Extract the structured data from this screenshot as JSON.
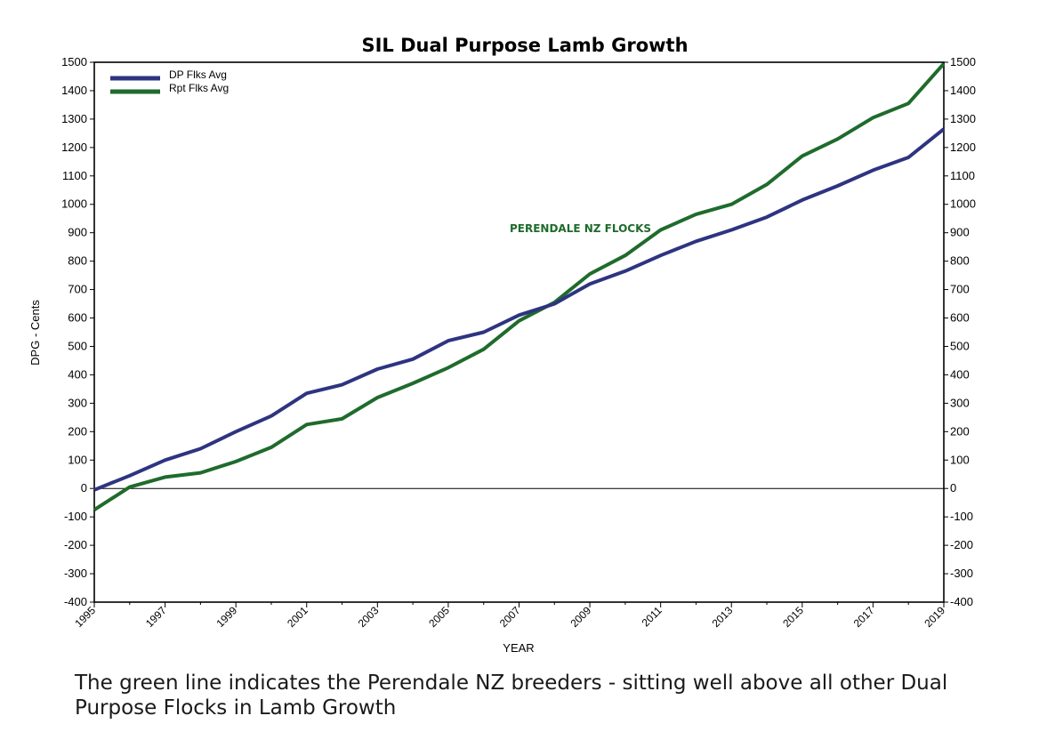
{
  "chart_data": {
    "type": "line",
    "title": "SIL Dual Purpose Lamb Growth",
    "xlabel": "YEAR",
    "ylabel": "DPG - Cents",
    "xlim": [
      1995,
      2019
    ],
    "ylim": [
      -400,
      1500
    ],
    "y_ticks": [
      -400,
      -300,
      -200,
      -100,
      0,
      100,
      200,
      300,
      400,
      500,
      600,
      700,
      800,
      900,
      1000,
      1100,
      1200,
      1300,
      1400,
      1500
    ],
    "x_ticks": [
      "1995",
      "1997",
      "1999",
      "2001",
      "2003",
      "2005",
      "2007",
      "2009",
      "2011",
      "2013",
      "2015",
      "2017",
      "2019"
    ],
    "grid": false,
    "secondary_y_axis": true,
    "legend_position": "top-left",
    "x": [
      1995,
      1996,
      1997,
      1998,
      1999,
      2000,
      2001,
      2002,
      2003,
      2004,
      2005,
      2006,
      2007,
      2008,
      2009,
      2010,
      2011,
      2012,
      2013,
      2014,
      2015,
      2016,
      2017,
      2018,
      2019
    ],
    "series": [
      {
        "name": "DP Flks Avg",
        "color": "#2e3480",
        "values": [
          -5,
          45,
          100,
          140,
          200,
          255,
          335,
          365,
          420,
          455,
          520,
          550,
          610,
          650,
          720,
          765,
          820,
          870,
          910,
          955,
          1015,
          1065,
          1120,
          1165,
          1265
        ]
      },
      {
        "name": "Rpt Flks Avg",
        "color": "#1f6b2c",
        "values": [
          -75,
          5,
          40,
          55,
          95,
          145,
          225,
          245,
          320,
          370,
          425,
          490,
          590,
          655,
          755,
          820,
          910,
          965,
          1000,
          1070,
          1170,
          1230,
          1305,
          1355,
          1495
        ]
      }
    ],
    "annotation": {
      "text": "PERENDALE NZ FLOCKS",
      "color": "#1f6b2c"
    }
  },
  "caption": "The green line indicates the Perendale NZ breeders - sitting well above all other Dual Purpose Flocks in Lamb Growth"
}
